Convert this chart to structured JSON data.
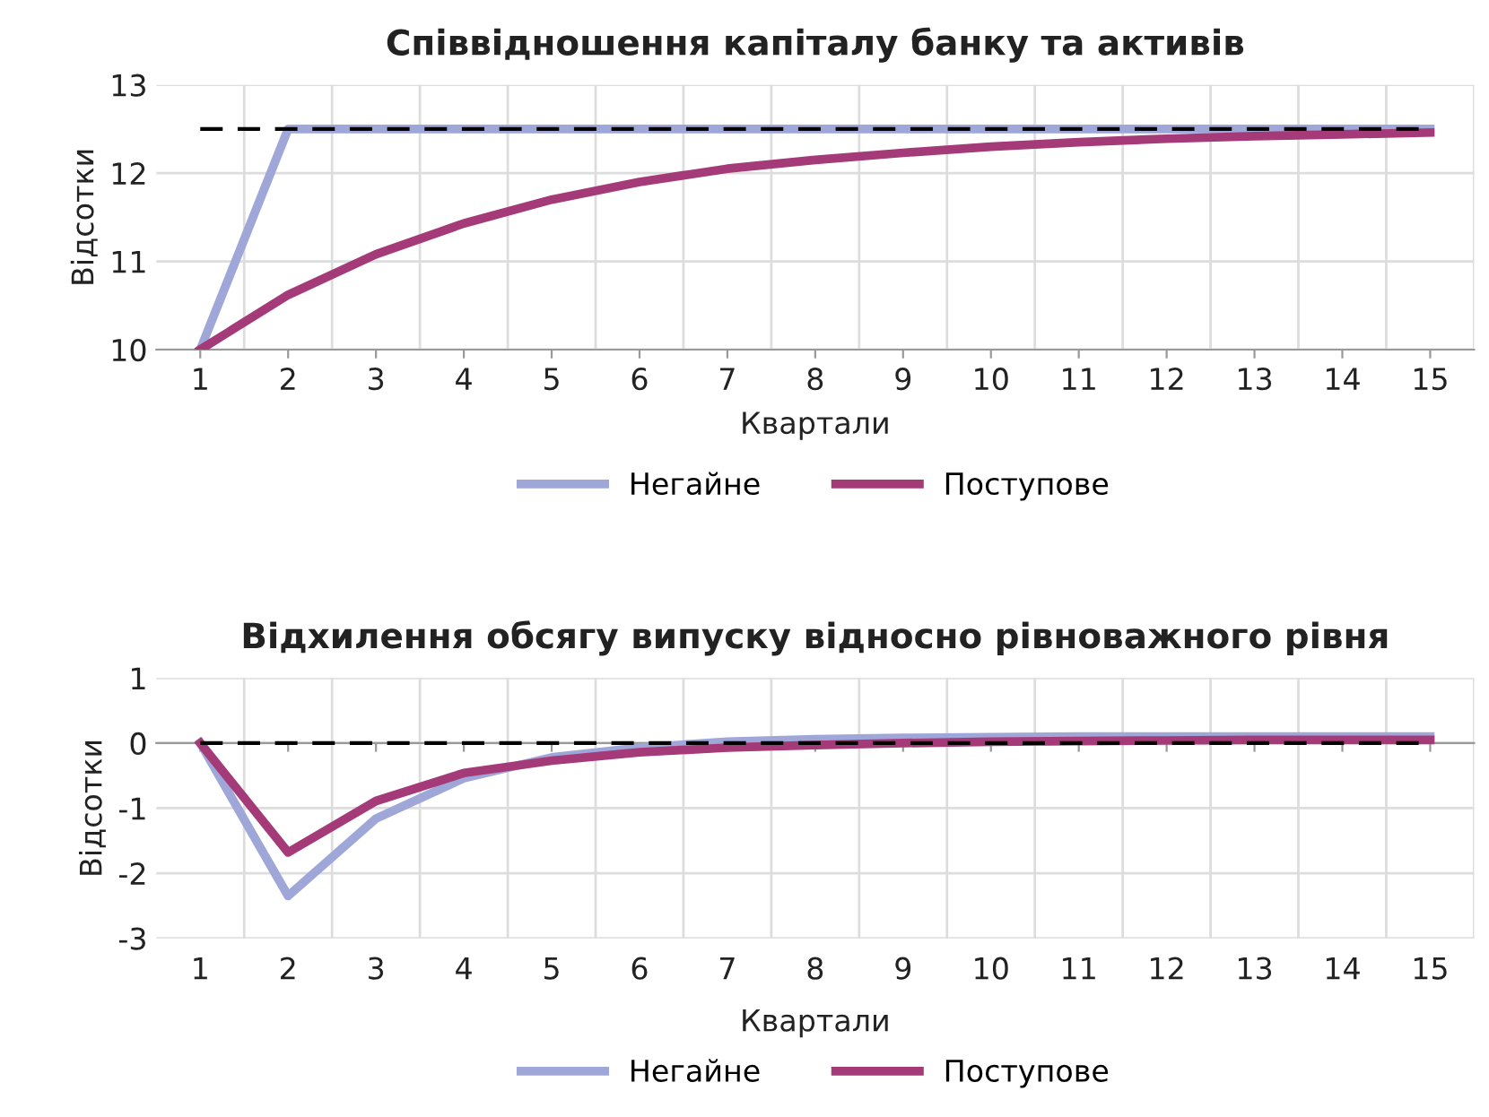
{
  "chart_data": [
    {
      "type": "line",
      "title": "Співвідношення капіталу банку та активів",
      "xlabel": "Квартали",
      "ylabel": "Відсотки",
      "categories": [
        "1",
        "2",
        "3",
        "4",
        "5",
        "6",
        "7",
        "8",
        "9",
        "10",
        "11",
        "12",
        "13",
        "14",
        "15"
      ],
      "series": [
        {
          "name": "Негайне",
          "color": "#9ea7d8",
          "values": [
            10,
            12.5,
            12.5,
            12.5,
            12.5,
            12.5,
            12.5,
            12.5,
            12.5,
            12.5,
            12.5,
            12.5,
            12.5,
            12.5,
            12.5
          ]
        },
        {
          "name": "Поступове",
          "color": "#a53a78",
          "values": [
            10,
            10.62,
            11.08,
            11.43,
            11.7,
            11.9,
            12.05,
            12.15,
            12.23,
            12.3,
            12.35,
            12.39,
            12.42,
            12.44,
            12.46
          ]
        }
      ],
      "ref_lines": [
        {
          "axis": "y",
          "value": 12.5,
          "label": null,
          "color": "#000000",
          "line_style": "dashed"
        }
      ],
      "ylim": [
        10,
        13
      ],
      "yticks": [
        10,
        11,
        12,
        13
      ],
      "grid": true,
      "legend": "bottom",
      "marker": "none",
      "line_style": "solid"
    },
    {
      "type": "line",
      "title": "Відхилення обсягу випуску відносно рівноважного рівня",
      "xlabel": "Квартали",
      "ylabel": "Відсотки",
      "categories": [
        "1",
        "2",
        "3",
        "4",
        "5",
        "6",
        "7",
        "8",
        "9",
        "10",
        "11",
        "12",
        "13",
        "14",
        "15"
      ],
      "series": [
        {
          "name": "Негайне",
          "color": "#9ea7d8",
          "values": [
            0,
            -2.35,
            -1.16,
            -0.54,
            -0.22,
            -0.07,
            0.02,
            0.06,
            0.08,
            0.09,
            0.1,
            0.1,
            0.1,
            0.1,
            0.1
          ]
        },
        {
          "name": "Поступове",
          "color": "#a53a78",
          "values": [
            0,
            -1.68,
            -0.89,
            -0.46,
            -0.27,
            -0.14,
            -0.07,
            -0.03,
            0,
            0.02,
            0.03,
            0.04,
            0.05,
            0.05,
            0.05
          ]
        }
      ],
      "ref_lines": [
        {
          "axis": "y",
          "value": 0,
          "label": null,
          "color": "#000000",
          "line_style": "dashed"
        }
      ],
      "ylim": [
        -3,
        1
      ],
      "yticks": [
        {
          "value": -3,
          "label": "-3"
        },
        {
          "value": -2,
          "label": "-2"
        },
        {
          "value": -1,
          "label": "-1"
        },
        0,
        1
      ],
      "grid": true,
      "legend": "bottom",
      "marker": "none",
      "line_style": "solid"
    }
  ]
}
